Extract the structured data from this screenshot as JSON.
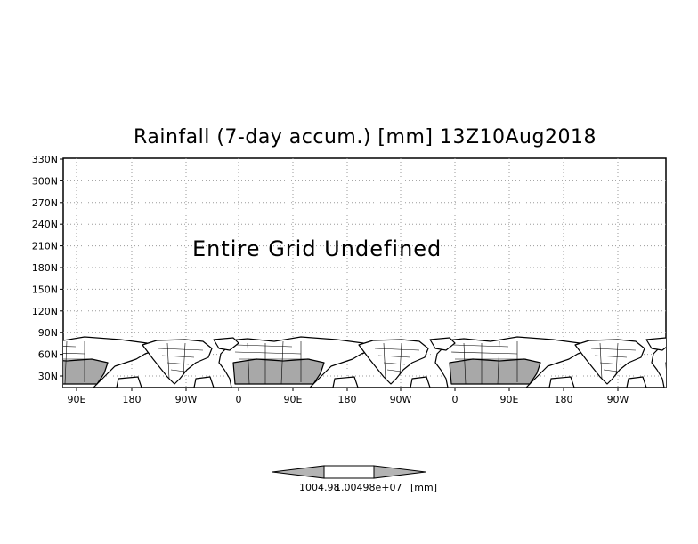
{
  "title": "Rainfall (7-day accum.) [mm] 13Z10Aug2018",
  "undefined_message": "Entire Grid Undefined",
  "y_ticks": [
    "330N",
    "300N",
    "270N",
    "240N",
    "210N",
    "180N",
    "150N",
    "120N",
    "90N",
    "60N",
    "30N"
  ],
  "x_ticks": [
    "90E",
    "180",
    "90W",
    "0",
    "90E",
    "180",
    "90W",
    "0",
    "90E",
    "180",
    "90W"
  ],
  "colorbar": {
    "label": "1004.98",
    "overlap_label": "1.00498e+07",
    "units": "[mm]"
  },
  "colors": {
    "land_shade": "#a8a8a8",
    "colorbar_fill": "#b4b4b4",
    "grid": "#9a9a9a"
  }
}
